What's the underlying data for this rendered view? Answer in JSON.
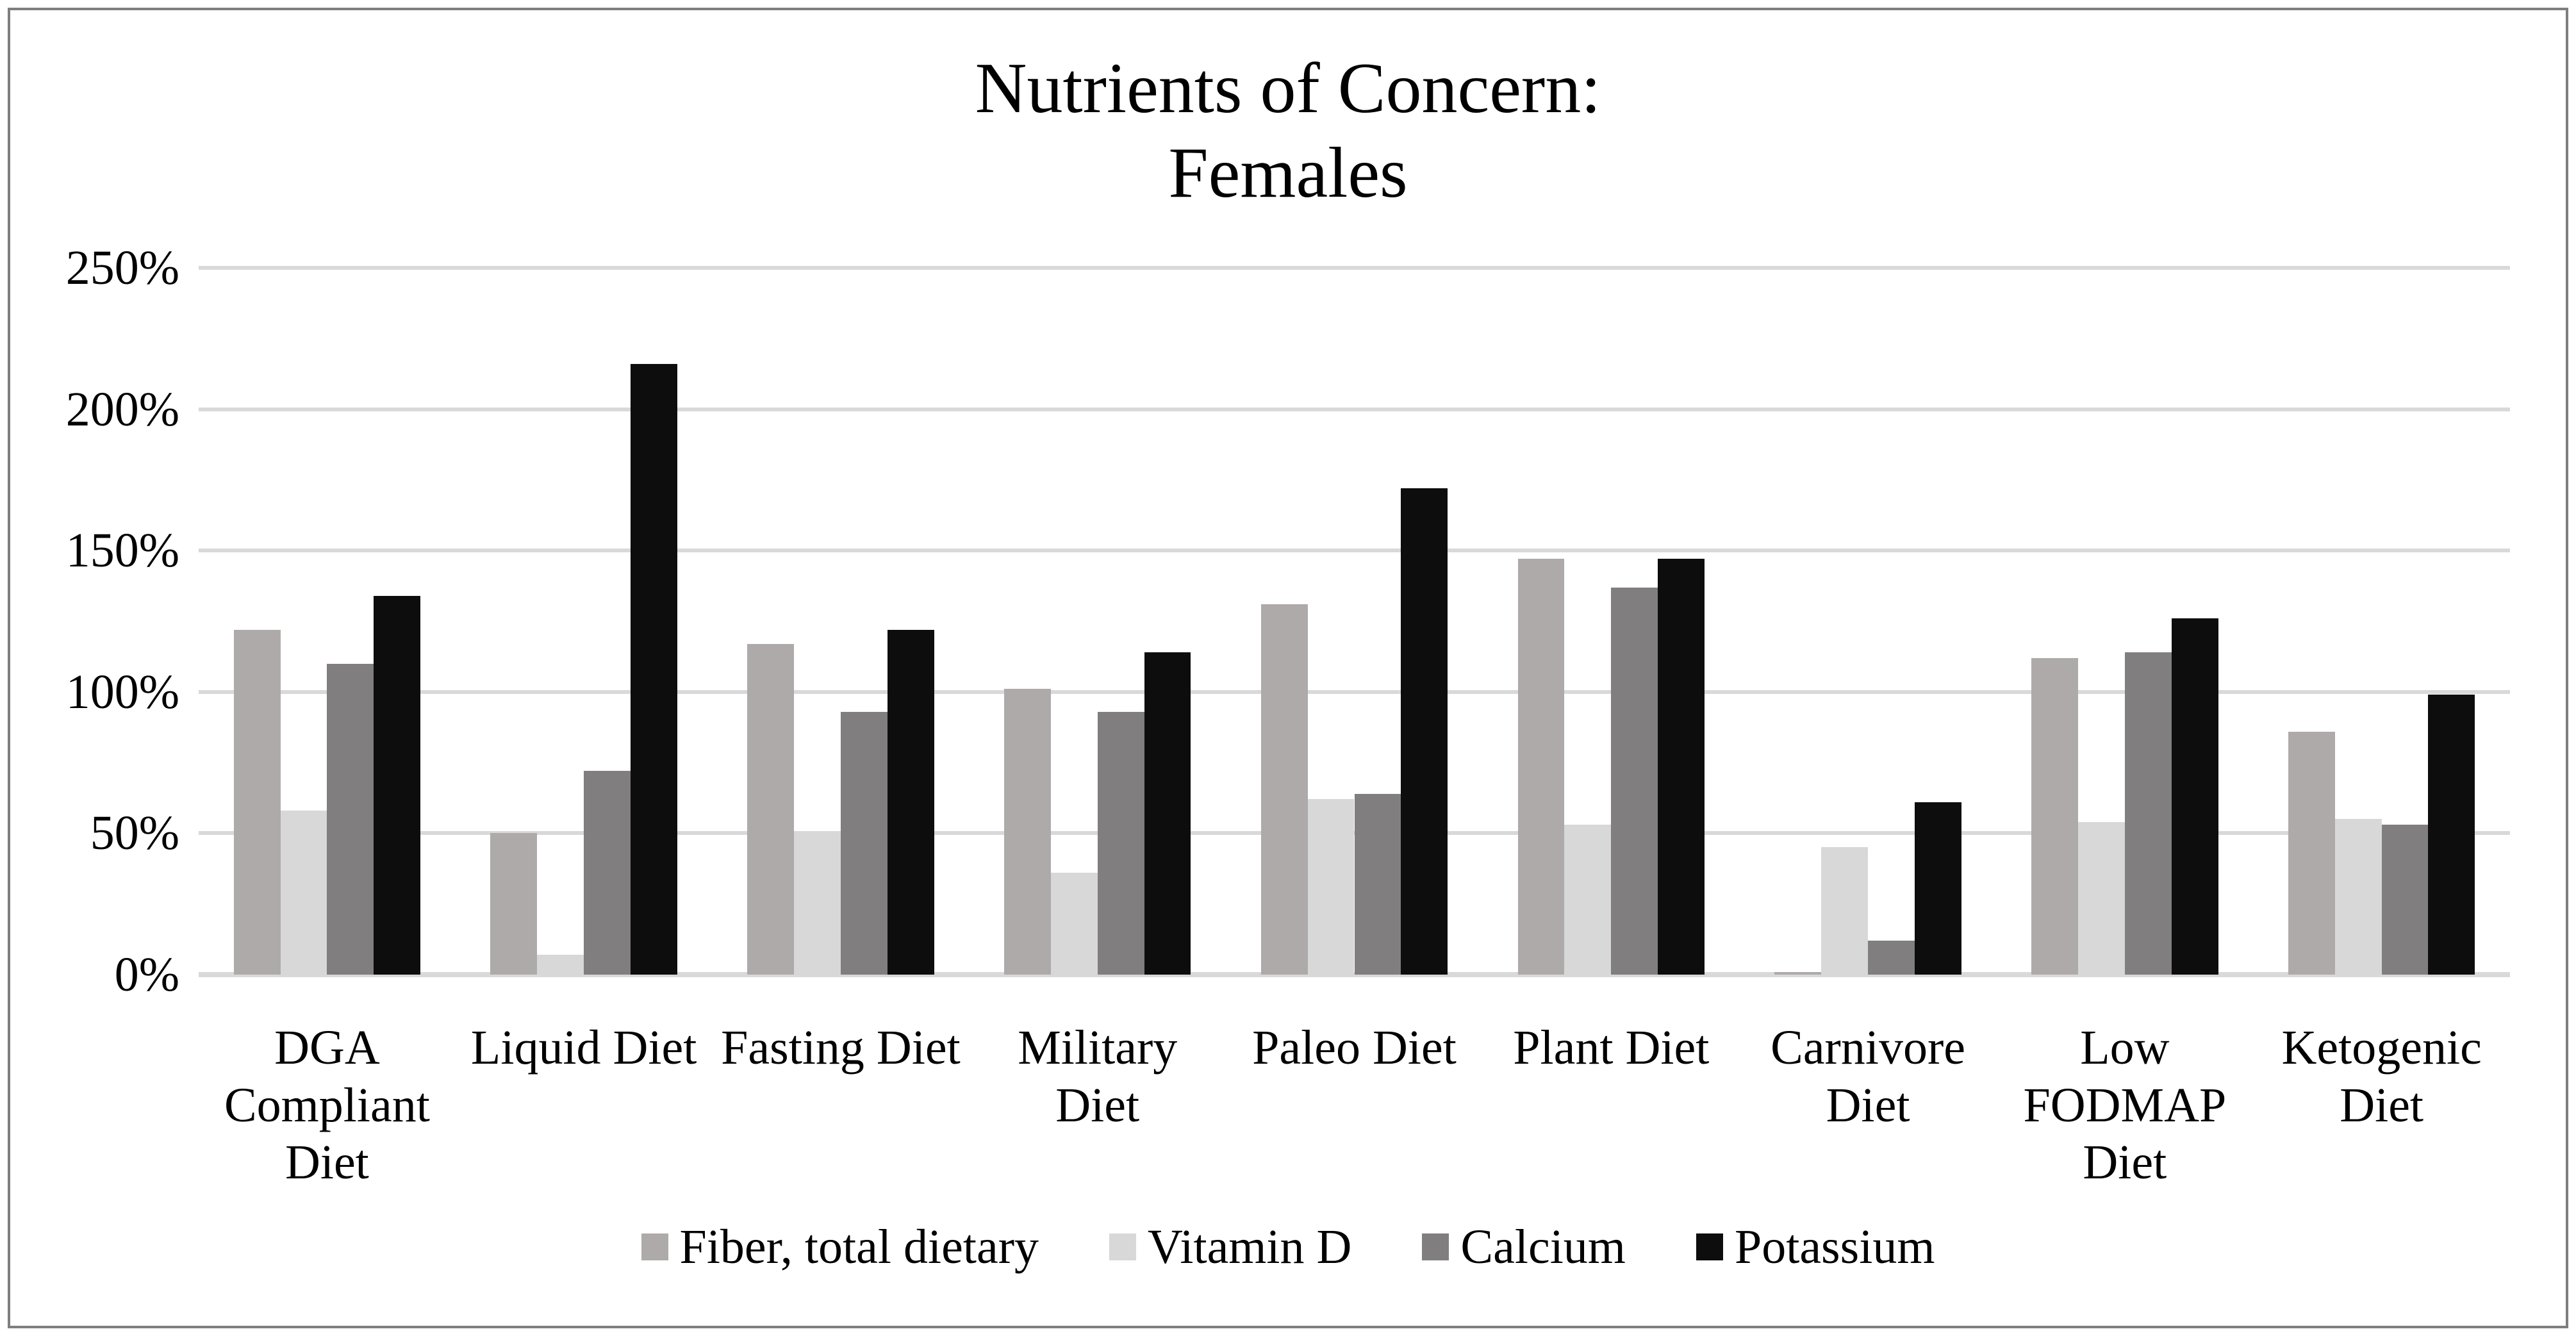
{
  "chart_data": {
    "type": "bar",
    "title": "Nutrients of Concern: Females",
    "title_lines": [
      "Nutrients of Concern:",
      "Females"
    ],
    "categories": [
      "DGA Compliant Diet",
      "Liquid Diet",
      "Fasting Diet",
      "Military Diet",
      "Paleo Diet",
      "Plant Diet",
      "Carnivore Diet",
      "Low FODMAP Diet",
      "Ketogenic Diet"
    ],
    "series": [
      {
        "name": "Fiber, total dietary",
        "color": "#aeaaaa",
        "values": [
          122,
          50,
          117,
          101,
          131,
          147,
          1,
          112,
          86
        ]
      },
      {
        "name": "Vitamin D",
        "color": "#d8d8d8",
        "values": [
          58,
          7,
          50,
          36,
          62,
          53,
          45,
          54,
          55
        ]
      },
      {
        "name": "Calcium",
        "color": "#807e7e",
        "values": [
          110,
          72,
          93,
          93,
          64,
          137,
          12,
          114,
          53
        ]
      },
      {
        "name": "Potassium",
        "color": "#0e0d0d",
        "values": [
          134,
          216,
          122,
          114,
          172,
          147,
          61,
          126,
          99
        ]
      }
    ],
    "xlabel": "",
    "ylabel": "",
    "ylim": [
      0,
      250
    ],
    "ytick_step": 50,
    "ytick_labels": [
      "0%",
      "50%",
      "100%",
      "150%",
      "200%",
      "250%"
    ],
    "grid": true,
    "legend_position": "bottom",
    "colors": {
      "gridline": "#d9d9d9",
      "frame_border": "#7f7f7f",
      "text": "#000000",
      "background": "#ffffff"
    }
  }
}
